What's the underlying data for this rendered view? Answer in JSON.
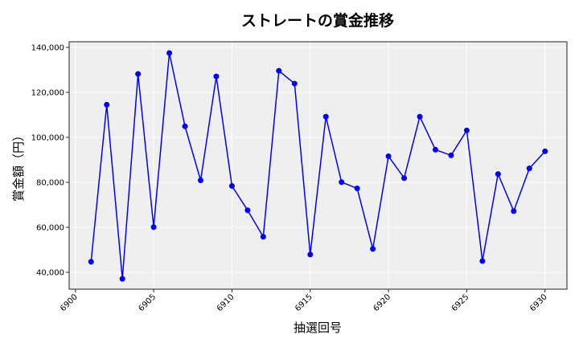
{
  "chart_data": {
    "type": "line",
    "title": "ストレートの賞金推移",
    "xlabel": "抽選回号",
    "ylabel": "賞金額（円）",
    "x": [
      6901,
      6902,
      6903,
      6904,
      6905,
      6906,
      6907,
      6908,
      6909,
      6910,
      6911,
      6912,
      6913,
      6914,
      6915,
      6916,
      6917,
      6918,
      6919,
      6920,
      6921,
      6922,
      6923,
      6924,
      6925,
      6926,
      6927,
      6928,
      6929,
      6930
    ],
    "series": [
      {
        "values": [
          44700,
          114500,
          37100,
          128200,
          60100,
          137500,
          104900,
          80900,
          127100,
          78400,
          67600,
          55800,
          129600,
          123900,
          47900,
          109200,
          80100,
          77300,
          50400,
          91600,
          81900,
          109200,
          94500,
          92000,
          103100,
          45000,
          83700,
          67200,
          86200,
          93800
        ],
        "color": "#0000ff"
      }
    ],
    "xticks": [
      6900,
      6905,
      6910,
      6915,
      6920,
      6925,
      6930
    ],
    "xtick_labels": [
      "6900",
      "6905",
      "6910",
      "6915",
      "6920",
      "6925",
      "6930"
    ],
    "yticks": [
      40000,
      60000,
      80000,
      100000,
      120000,
      140000
    ],
    "ytick_labels": [
      "40,000",
      "60,000",
      "80,000",
      "100,000",
      "120,000",
      "140,000"
    ],
    "xlim": [
      6899.6,
      6931.4
    ],
    "ylim": [
      32500,
      142500
    ],
    "grid": true,
    "background": "#efefef"
  }
}
